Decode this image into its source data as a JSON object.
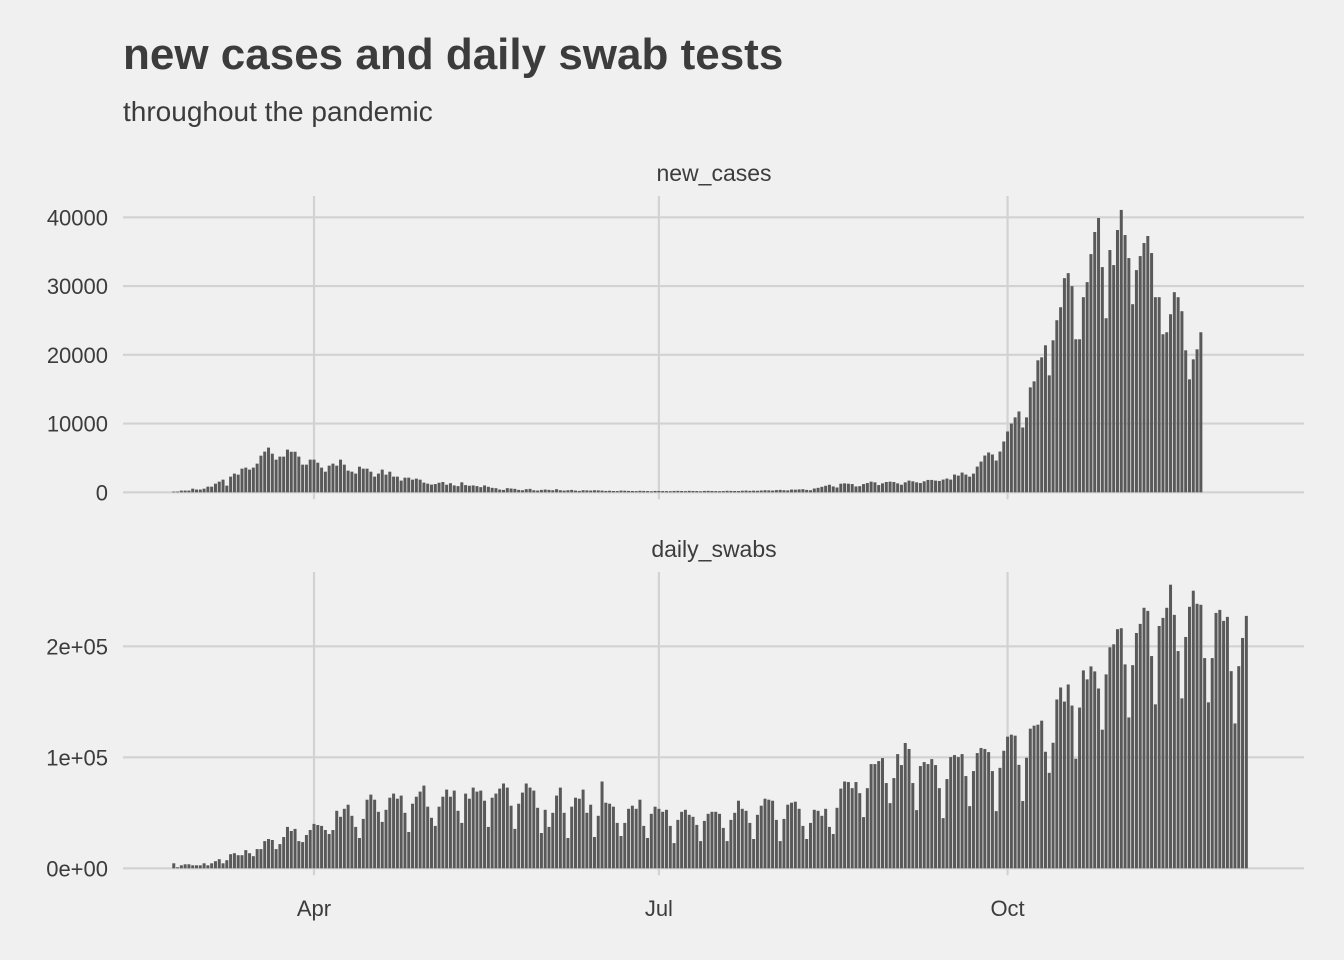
{
  "chart_data": {
    "type": "bar",
    "title": "new cases and daily swab tests",
    "subtitle": "throughout the pandemic",
    "x_start_date": "2020-02-24",
    "x_end_date": "2020-12-02",
    "x_ticks": [
      {
        "label": "Apr",
        "date": "2020-04-01",
        "day_index": 37
      },
      {
        "label": "Jul",
        "date": "2020-07-01",
        "day_index": 128
      },
      {
        "label": "Oct",
        "date": "2020-10-01",
        "day_index": 220
      }
    ],
    "grid": true,
    "panels": [
      {
        "strip_label": "new_cases",
        "ylim": [
          0,
          41500
        ],
        "y_ticks": [
          {
            "value": 0,
            "label": "0"
          },
          {
            "value": 10000,
            "label": "10000"
          },
          {
            "value": 20000,
            "label": "20000"
          },
          {
            "value": 30000,
            "label": "30000"
          },
          {
            "value": 40000,
            "label": "40000"
          }
        ],
        "values": [
          100,
          100,
          250,
          250,
          250,
          530,
          400,
          400,
          530,
          820,
          820,
          1260,
          1550,
          1840,
          970,
          2280,
          2720,
          2570,
          3440,
          3590,
          3300,
          3590,
          4170,
          5330,
          5920,
          6500,
          5620,
          4750,
          5190,
          5190,
          6210,
          5900,
          5900,
          5190,
          4020,
          4020,
          4750,
          4750,
          4310,
          3590,
          3000,
          3880,
          4170,
          3880,
          4750,
          4020,
          3150,
          3000,
          2720,
          3730,
          3440,
          3440,
          3000,
          2280,
          2720,
          3300,
          2570,
          3000,
          2280,
          2280,
          1700,
          2130,
          2130,
          1840,
          1990,
          1840,
          1410,
          1260,
          1120,
          1200,
          1390,
          1500,
          1100,
          1320,
          1000,
          900,
          1450,
          1050,
          950,
          1000,
          900,
          750,
          1000,
          800,
          650,
          600,
          400,
          350,
          600,
          550,
          500,
          350,
          300,
          450,
          500,
          300,
          250,
          350,
          400,
          350,
          300,
          450,
          300,
          250,
          300,
          350,
          250,
          200,
          300,
          280,
          250,
          300,
          280,
          250,
          200,
          230,
          190,
          180,
          250,
          230,
          200,
          190,
          170,
          220,
          200,
          180,
          150,
          200,
          190,
          180,
          170,
          160,
          200,
          210,
          190,
          170,
          210,
          190,
          180,
          150,
          200,
          210,
          190,
          170,
          160,
          180,
          220,
          200,
          190,
          180,
          230,
          250,
          210,
          240,
          220,
          260,
          300,
          280,
          250,
          320,
          350,
          300,
          280,
          400,
          380,
          420,
          450,
          350,
          300,
          550,
          650,
          800,
          950,
          1100,
          850,
          700,
          1250,
          1300,
          1250,
          1200,
          850,
          900,
          1200,
          1350,
          1550,
          1450,
          1050,
          1300,
          1500,
          1550,
          1500,
          1300,
          1100,
          1450,
          1700,
          1600,
          1450,
          1350,
          1600,
          1800,
          1800,
          1700,
          1650,
          1850,
          2000,
          1850,
          2580,
          2430,
          2870,
          2580,
          2280,
          2720,
          3740,
          4470,
          5350,
          5790,
          5500,
          4620,
          5930,
          7390,
          8850,
          10000,
          10900,
          11760,
          9430,
          10900,
          15260,
          16140,
          19200,
          19630,
          21380,
          17010,
          22110,
          25030,
          26920,
          31150,
          31880,
          29990,
          22260,
          22260,
          28380,
          30570,
          34650,
          37860,
          39900,
          32760,
          25320,
          35240,
          33050,
          38150,
          41070,
          37420,
          34070,
          27360,
          32320,
          34360,
          36260,
          37280,
          34800,
          28380,
          28380,
          22990,
          23280,
          25900,
          29110,
          28380,
          26340,
          20650,
          16430,
          19340,
          20800,
          23280
        ]
      },
      {
        "strip_label": "daily_swabs",
        "ylim": [
          0,
          260000
        ],
        "y_ticks": [
          {
            "value": 0,
            "label": "0e+00"
          },
          {
            "value": 100000,
            "label": "1e+05"
          },
          {
            "value": 200000,
            "label": "2e+05"
          }
        ],
        "values": [
          4500,
          900,
          2700,
          3600,
          3600,
          2700,
          2700,
          2700,
          4500,
          2700,
          4500,
          6400,
          8200,
          4500,
          7300,
          12700,
          13600,
          11800,
          11800,
          16400,
          13600,
          10900,
          17300,
          17300,
          24500,
          26400,
          25500,
          17300,
          21800,
          28200,
          37300,
          33600,
          35500,
          24500,
          23600,
          30000,
          34500,
          40000,
          39000,
          38200,
          34500,
          30900,
          34500,
          51800,
          46400,
          53600,
          57300,
          47300,
          37300,
          27300,
          44500,
          61800,
          66400,
          61800,
          50900,
          41800,
          52700,
          63600,
          67300,
          62700,
          65500,
          50000,
          32700,
          58200,
          64500,
          69100,
          74500,
          55500,
          45500,
          38200,
          55500,
          64500,
          70900,
          64500,
          70000,
          51800,
          40900,
          67300,
          62700,
          72700,
          69100,
          70000,
          60900,
          37300,
          63600,
          67300,
          71800,
          76400,
          72700,
          56400,
          35500,
          58200,
          68200,
          76400,
          72700,
          70000,
          54500,
          31800,
          52700,
          37300,
          50000,
          65500,
          72700,
          50000,
          27300,
          55500,
          63600,
          62700,
          70900,
          50000,
          57300,
          28200,
          47300,
          78200,
          59100,
          58200,
          55500,
          40900,
          29100,
          40900,
          53600,
          56400,
          53600,
          61800,
          38200,
          27300,
          49100,
          55500,
          53600,
          50900,
          52700,
          38200,
          22700,
          43600,
          50900,
          52700,
          48200,
          46400,
          39100,
          24500,
          42700,
          49100,
          50900,
          50900,
          49100,
          36400,
          24500,
          43600,
          50000,
          60900,
          53600,
          51800,
          40900,
          26400,
          48200,
          56400,
          62700,
          61800,
          60900,
          43600,
          24500,
          44500,
          57300,
          59100,
          60000,
          53600,
          38200,
          26400,
          40900,
          52700,
          51800,
          47300,
          53600,
          37300,
          30900,
          54500,
          71800,
          78200,
          77700,
          72200,
          77700,
          67700,
          46100,
          72200,
          93900,
          93900,
          96600,
          99300,
          76800,
          58700,
          81300,
          102900,
          93000,
          112900,
          107500,
          76800,
          52400,
          92100,
          95700,
          93900,
          98400,
          93000,
          72200,
          45200,
          80400,
          100200,
          102000,
          100200,
          102900,
          83100,
          56000,
          87600,
          103800,
          108400,
          107500,
          104700,
          87600,
          51500,
          90500,
          105900,
          118600,
          120400,
          119500,
          93200,
          60600,
          99600,
          125800,
          128500,
          129400,
          133000,
          105000,
          86000,
          113100,
          152100,
          162900,
          150200,
          165600,
          146600,
          98700,
          144800,
          178300,
          170200,
          181900,
          177400,
          162000,
          124900,
          174700,
          199100,
          201800,
          215400,
          216300,
          183700,
          135900,
          183000,
          212000,
          220200,
          234700,
          231900,
          191200,
          147700,
          218300,
          225600,
          234700,
          255500,
          228300,
          195700,
          153100,
          208400,
          235600,
          250100,
          238300,
          237400,
          189400,
          149500,
          189400,
          230100,
          232800,
          222900,
          226500,
          177600,
          130500,
          182100,
          207500,
          227400
        ]
      }
    ]
  }
}
